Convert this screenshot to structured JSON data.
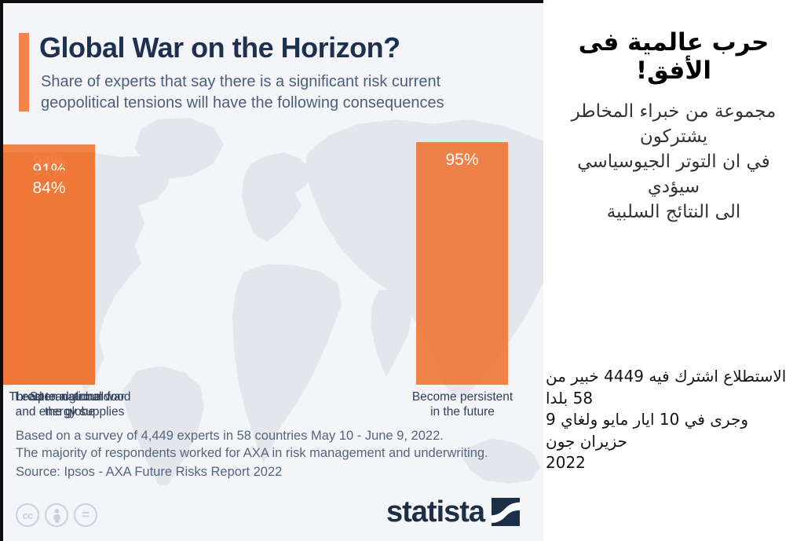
{
  "chart": {
    "title": "Global War on the Horizon?",
    "subtitle_lines": [
      "Share of experts that say there is a significant risk current",
      "geopolitical tensions will have the following consequences"
    ],
    "footnote_lines": [
      "Based on a survey of 4,449 experts in 58 countries May 10 - June 9, 2022.",
      "The majority of respondents worked for AXA in risk management and underwriting."
    ],
    "source": "Source: Ipsos - AXA Future Risks Report 2022",
    "brand": "statista",
    "license_badges": [
      "cc",
      "attribution-person",
      "equals"
    ],
    "colors": {
      "bar_orange": "#F0824C",
      "accent_orange": "#F4824B",
      "title_navy": "#1E3050",
      "subtitle_gray_blue": "#4C5E7E",
      "panel_background": "#F3F5F8",
      "map_gray": "#E3E7EC",
      "brand_navy": "#1D2E49",
      "border_black": "#0E0E0E"
    }
  },
  "chart_data": {
    "type": "bar",
    "title": "Global War on the Horizon?",
    "subtitle": "Share of experts that say there is a significant risk current geopolitical tensions will have the following consequences",
    "categories": [
      "Become persistent in the future",
      "Spread around the globe",
      "Threaten national food and energy supplies",
      "Lead to a global war"
    ],
    "category_lines": [
      [
        "Become persistent",
        "in the future"
      ],
      [
        "Spread around",
        "the globe"
      ],
      [
        "Threaten national food",
        "and energy supplies"
      ],
      [
        "Lead to a global war"
      ]
    ],
    "values": [
      95,
      94,
      91,
      84
    ],
    "value_labels": [
      "95%",
      "94%",
      "91%",
      "84%"
    ],
    "unit": "%",
    "xlabel": "",
    "ylabel": "",
    "ylim": [
      0,
      100
    ],
    "grid": false,
    "legend": false,
    "bar_color": "#F0824C",
    "value_label_position": "inside-top",
    "background": "faint world map"
  },
  "translation": {
    "title": "حرب عالمية فى الأفق!",
    "paragraph1_lines": [
      "مجموعة من خبراء المخاطر يشتركون",
      "في ان التوتر الجيوسياسي سيؤدي",
      "الى النتائج السلبية"
    ],
    "paragraph2_lines": [
      "الاستطلاع اشترك فيه 4449 خبير من 58 بلدا",
      "وجرى في 10 ايار مايو ولغاي 9 حزيران جون",
      "2022"
    ]
  }
}
